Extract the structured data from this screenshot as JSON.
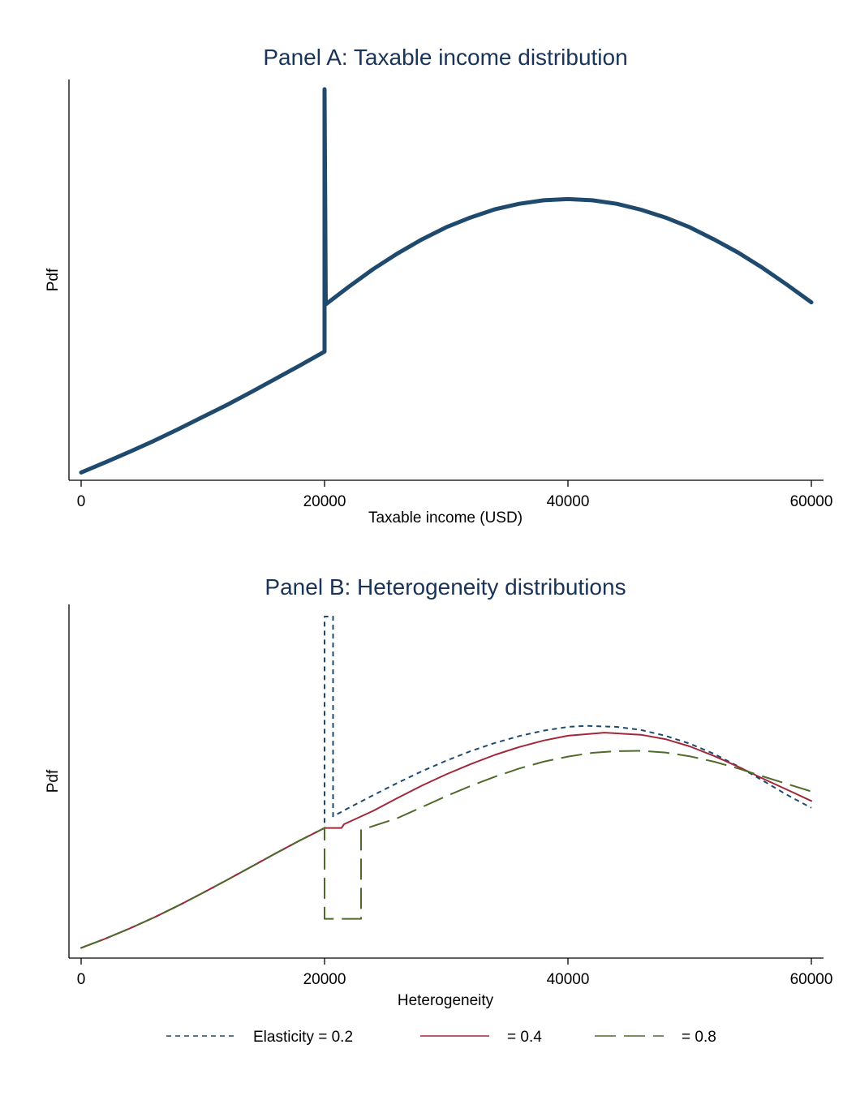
{
  "colors": {
    "panel_a_line": "#1f4a6e",
    "series_1": "#1f4a6e",
    "series_2": "#a0283a",
    "series_3": "#4e6b2c",
    "title": "#1a3358"
  },
  "chart_data": [
    {
      "type": "line",
      "title": "Panel A: Taxable income distribution",
      "xlabel": "Taxable income (USD)",
      "ylabel": "Pdf",
      "xlim": [
        0,
        60000
      ],
      "xticks": [
        0,
        20000,
        40000,
        60000
      ],
      "ylim": [
        0,
        1.0
      ],
      "grid": false,
      "series": [
        {
          "name": "",
          "x": [
            0,
            2000,
            4000,
            6000,
            8000,
            10000,
            12000,
            14000,
            16000,
            18000,
            20000,
            20000,
            20000,
            20000,
            20100,
            22000,
            24000,
            26000,
            28000,
            30000,
            32000,
            34000,
            36000,
            38000,
            40000,
            42000,
            44000,
            46000,
            48000,
            50000,
            52000,
            54000,
            56000,
            58000,
            60000
          ],
          "y": [
            0.02,
            0.046,
            0.073,
            0.101,
            0.131,
            0.162,
            0.193,
            0.226,
            0.26,
            0.294,
            0.329,
            0.329,
            1.0,
            1.0,
            0.45,
            0.495,
            0.54,
            0.58,
            0.616,
            0.647,
            0.672,
            0.693,
            0.707,
            0.716,
            0.719,
            0.716,
            0.707,
            0.692,
            0.672,
            0.647,
            0.616,
            0.582,
            0.543,
            0.5,
            0.455
          ]
        }
      ]
    },
    {
      "type": "line",
      "title": "Panel B: Heterogeneity distributions",
      "xlabel": "Heterogeneity",
      "ylabel": "Pdf",
      "xlim": [
        0,
        60000
      ],
      "xticks": [
        0,
        20000,
        40000,
        60000
      ],
      "ylim": [
        0,
        1.0
      ],
      "grid": false,
      "legend_position": "bottom",
      "series": [
        {
          "name": "Elasticity = 0.2",
          "style": "short-dash",
          "x": [
            0,
            2000,
            4000,
            6000,
            8000,
            10000,
            12000,
            14000,
            16000,
            18000,
            20000,
            20000,
            20700,
            20700,
            22000,
            24000,
            26000,
            28000,
            30000,
            32000,
            34000,
            36000,
            38000,
            40000,
            41500,
            44000,
            46000,
            48000,
            50000,
            52000,
            54000,
            56000,
            58000,
            60000
          ],
          "y": [
            0.03,
            0.057,
            0.087,
            0.119,
            0.154,
            0.191,
            0.229,
            0.268,
            0.307,
            0.345,
            0.381,
            1.0,
            1.0,
            0.415,
            0.44,
            0.477,
            0.513,
            0.547,
            0.578,
            0.606,
            0.63,
            0.65,
            0.666,
            0.677,
            0.68,
            0.677,
            0.668,
            0.651,
            0.628,
            0.598,
            0.561,
            0.52,
            0.478,
            0.44
          ]
        },
        {
          "name": "= 0.4",
          "style": "solid",
          "x": [
            0,
            2000,
            4000,
            6000,
            8000,
            10000,
            12000,
            14000,
            16000,
            18000,
            20000,
            20000,
            21400,
            21600,
            24000,
            26000,
            28000,
            30000,
            32000,
            34000,
            36000,
            38000,
            40000,
            43000,
            46000,
            48000,
            50000,
            52000,
            54000,
            56000,
            58000,
            60000
          ],
          "y": [
            0.03,
            0.057,
            0.087,
            0.119,
            0.154,
            0.191,
            0.229,
            0.268,
            0.307,
            0.345,
            0.381,
            0.381,
            0.381,
            0.392,
            0.431,
            0.469,
            0.505,
            0.538,
            0.568,
            0.595,
            0.618,
            0.637,
            0.651,
            0.66,
            0.654,
            0.641,
            0.62,
            0.592,
            0.56,
            0.526,
            0.493,
            0.46
          ]
        },
        {
          "name": "= 0.8",
          "style": "long-dash",
          "x": [
            0,
            2000,
            4000,
            6000,
            8000,
            10000,
            12000,
            14000,
            16000,
            18000,
            20000,
            20000,
            23000,
            23000,
            26000,
            28000,
            30000,
            32000,
            34000,
            36000,
            38000,
            40000,
            42000,
            44000,
            46000,
            48000,
            50000,
            52000,
            54000,
            56000,
            58000,
            60000
          ],
          "y": [
            0.03,
            0.057,
            0.087,
            0.119,
            0.154,
            0.191,
            0.229,
            0.268,
            0.307,
            0.345,
            0.381,
            0.115,
            0.115,
            0.375,
            0.41,
            0.442,
            0.474,
            0.504,
            0.531,
            0.555,
            0.575,
            0.59,
            0.601,
            0.606,
            0.607,
            0.602,
            0.591,
            0.575,
            0.555,
            0.532,
            0.51,
            0.488
          ]
        }
      ]
    }
  ]
}
